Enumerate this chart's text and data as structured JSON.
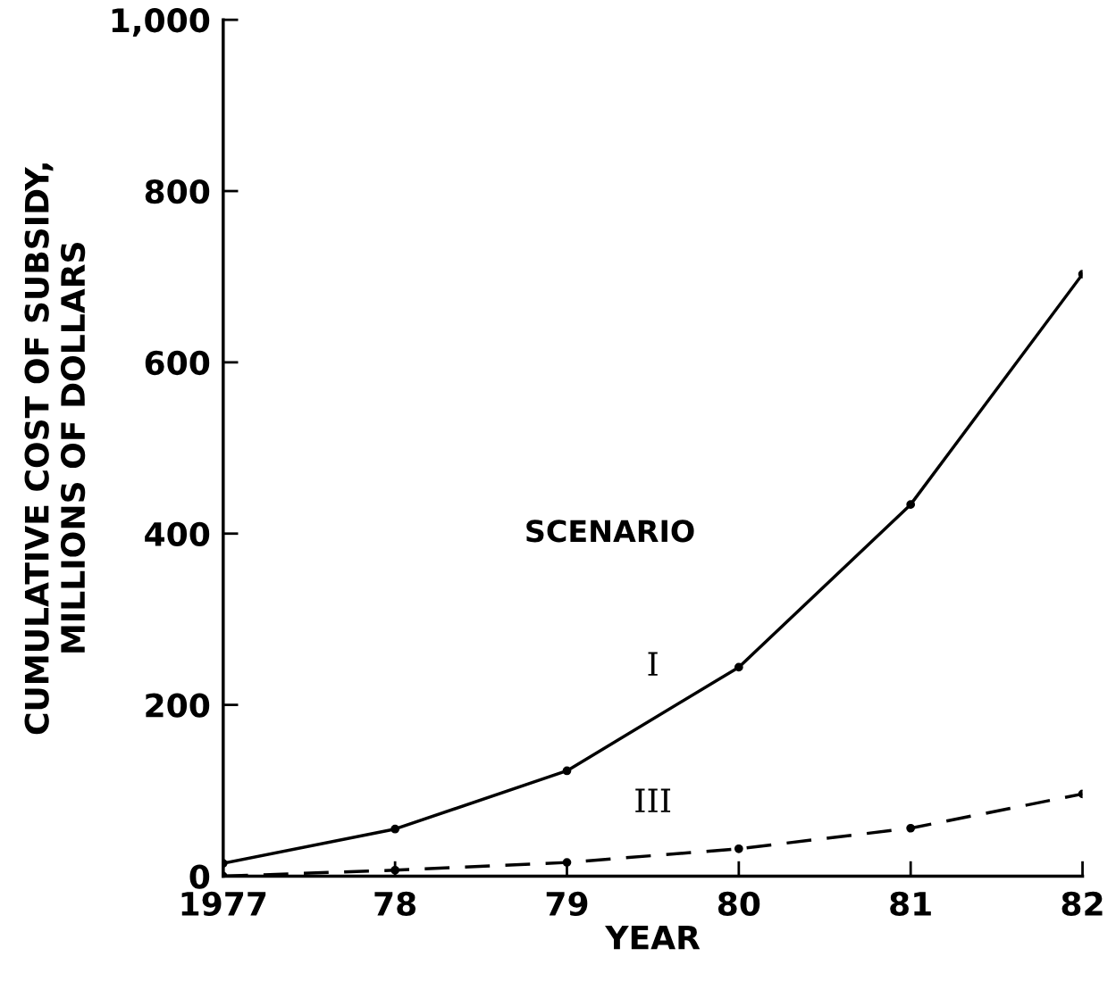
{
  "chart_data": {
    "type": "line",
    "xlabel": "YEAR",
    "ylabel": "CUMULATIVE COST OF SUBSIDY,\nMILLIONS OF DOLLARS",
    "x": [
      1977,
      1978,
      1979,
      1980,
      1981,
      1982
    ],
    "series": [
      {
        "name": "I",
        "color": "#000000",
        "line_style": "solid",
        "values": [
          15,
          55,
          123,
          244,
          434,
          703
        ]
      },
      {
        "name": "III",
        "color": "#000000",
        "line_style": "dashed",
        "values": [
          0,
          7,
          16,
          32,
          56,
          96
        ]
      }
    ],
    "xlim": [
      1977,
      1982
    ],
    "xticks": [
      1977,
      {
        "value": 1978,
        "label": "78"
      },
      {
        "value": 1979,
        "label": "79"
      },
      {
        "value": 1980,
        "label": "80"
      },
      {
        "value": 1981,
        "label": "81"
      },
      {
        "value": 1982,
        "label": "82"
      }
    ],
    "ylim": [
      0,
      1000
    ],
    "yticks": [
      0,
      200,
      400,
      600,
      800,
      {
        "value": 1000,
        "label": "1,000"
      }
    ],
    "annotations": [
      "SCENARIO"
    ],
    "marker": "circle",
    "grid": false,
    "legend": false
  }
}
